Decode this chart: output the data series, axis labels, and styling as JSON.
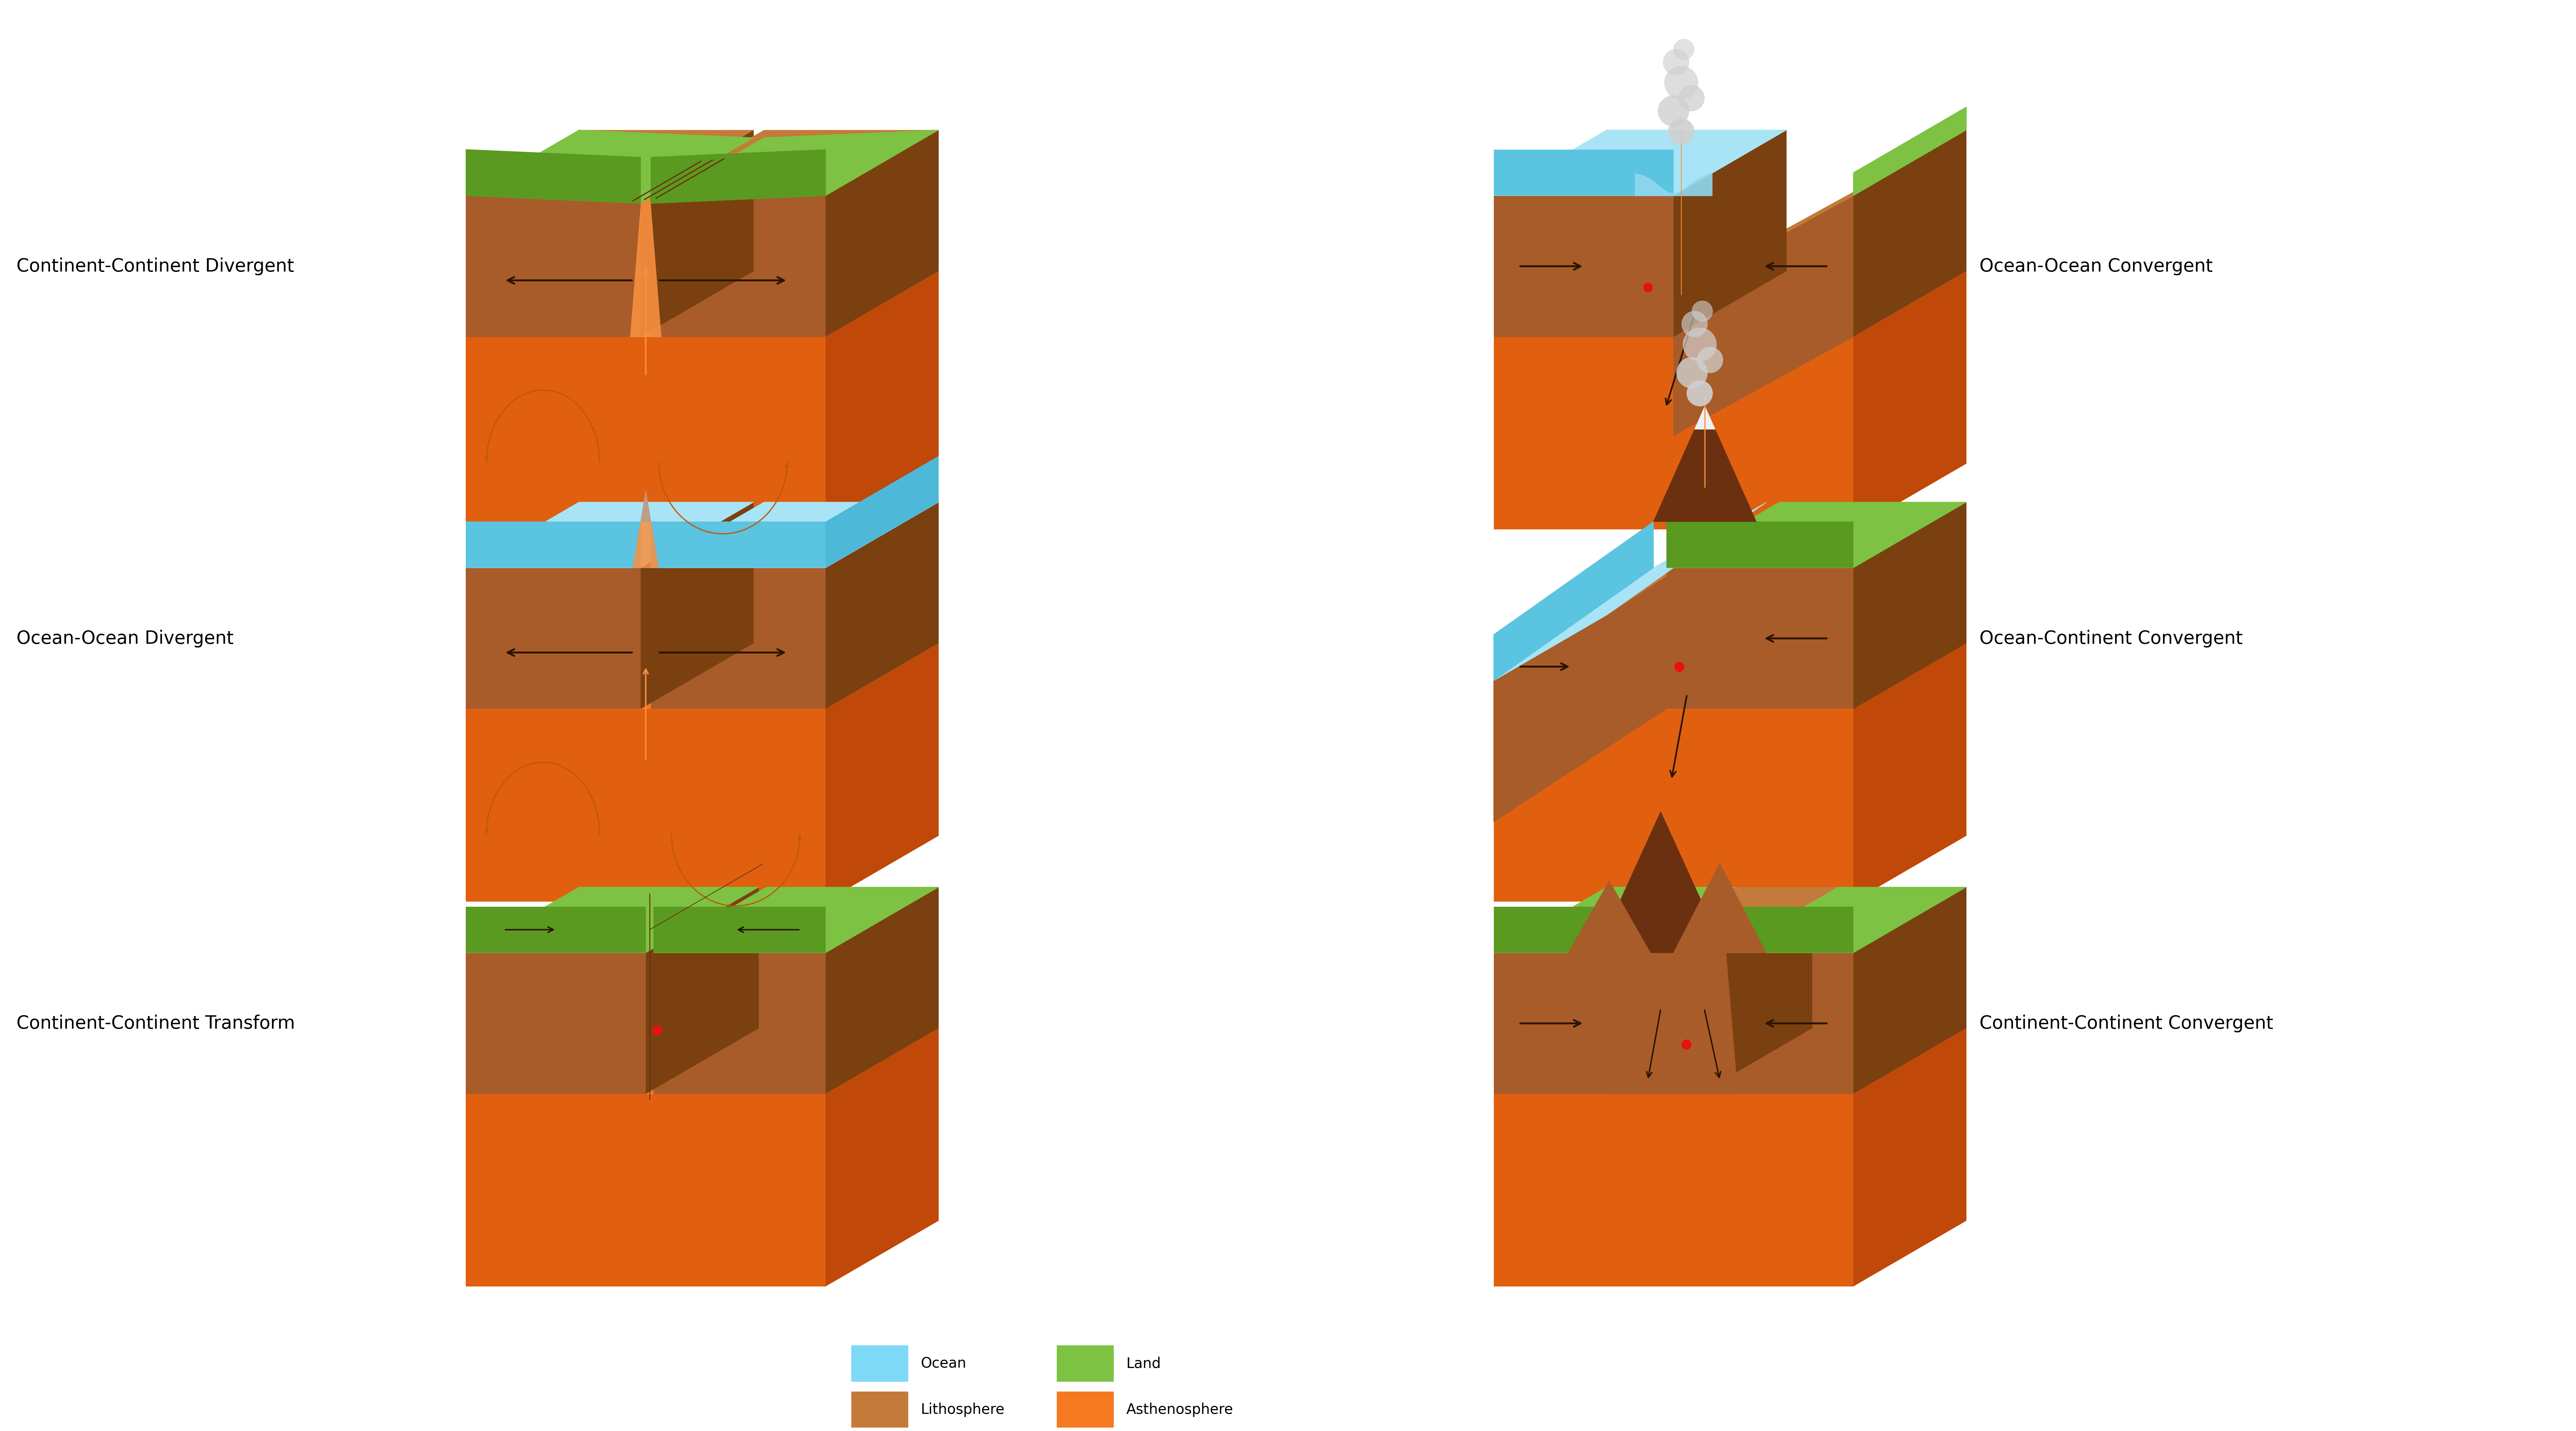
{
  "colors": {
    "land": "#7DC242",
    "land_dark": "#6AAF30",
    "land_side": "#5A9A20",
    "ocean_top": "#A8E4F5",
    "ocean_mid": "#7DD9F5",
    "ocean_front": "#5BC4E0",
    "ocean_side": "#4DB8D8",
    "ocean_deep": "#90D8F0",
    "lith_top": "#C47A3A",
    "lith_front": "#A85C2A",
    "lith_side": "#7B4010",
    "lith_dark": "#6B3010",
    "lith_rift": "#8B4C20",
    "asth_top": "#F47920",
    "asth_front": "#E06010",
    "asth_side": "#C04808",
    "asth_glow": "#F89040",
    "arrow_dark": "#2A1500",
    "mantle_arrow": "#C05808",
    "red_dot": "#E81010",
    "volcano_gray1": "#C8C8C8",
    "volcano_gray2": "#A0A0A0",
    "volcano_white": "#F0F0F0",
    "smoke_light": "#D0D0D0",
    "background": "#FFFFFF"
  },
  "labels": {
    "tl": "Continent-Continent Divergent",
    "tr": "Ocean-Ocean Convergent",
    "ml": "Ocean-Ocean Divergent",
    "mr": "Ocean-Continent Convergent",
    "bl": "Continent-Continent Transform",
    "br": "Continent-Continent Convergent"
  },
  "legend": [
    {
      "label": "Ocean",
      "color": "#7DD9F5"
    },
    {
      "label": "Land",
      "color": "#7DC242"
    },
    {
      "label": "Lithosphere",
      "color": "#C47A3A"
    },
    {
      "label": "Asthenosphere",
      "color": "#F47920"
    }
  ],
  "figsize": [
    75.11,
    41.68
  ],
  "dpi": 100
}
